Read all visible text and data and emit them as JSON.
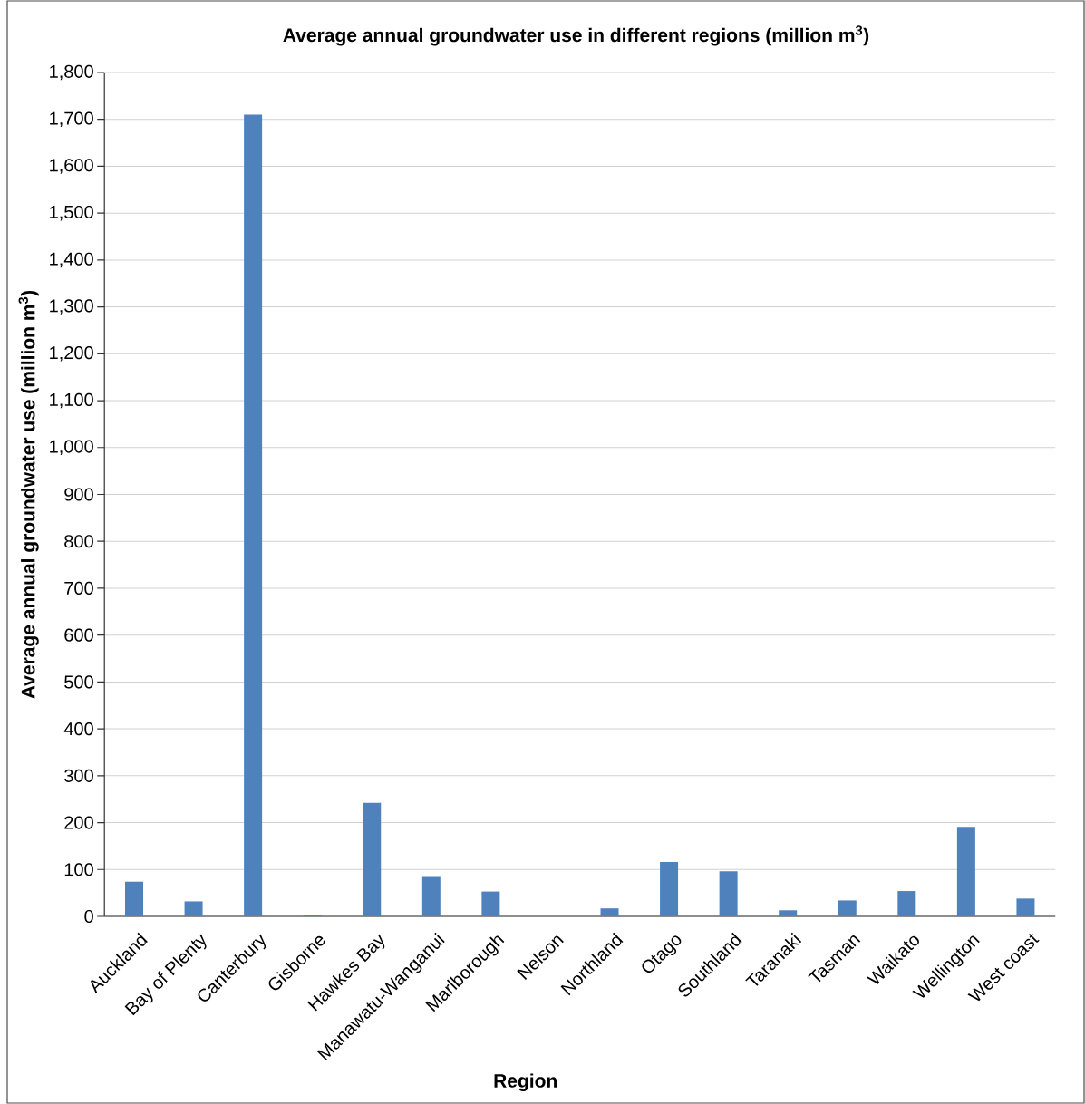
{
  "chart_data": {
    "type": "bar",
    "title": "Average annual groundwater use in different regions (million m$^{3}$)",
    "xlabel": "Region",
    "ylabel": "Average annual groundwater use (million m$^{3}$)",
    "categories": [
      "Auckland",
      "Bay of Plenty",
      "Canterbury",
      "Gisborne",
      "Hawkes Bay",
      "Manawatu-Wanganui",
      "Marlborough",
      "Nelson",
      "Northland",
      "Otago",
      "Southland",
      "Taranaki",
      "Tasman",
      "Waikato",
      "Wellington",
      "West coast"
    ],
    "values": [
      74,
      32,
      1710,
      3,
      242,
      84,
      53,
      0,
      17,
      116,
      96,
      13,
      34,
      54,
      191,
      38
    ],
    "color": "#4f81bd",
    "ylim": [
      0,
      1800
    ],
    "yticks": [
      0,
      100,
      200,
      300,
      400,
      500,
      600,
      700,
      800,
      900,
      {
        "value": 1000,
        "label": "1,000"
      },
      {
        "value": 1100,
        "label": "1,100"
      },
      {
        "value": 1200,
        "label": "1,200"
      },
      {
        "value": 1300,
        "label": "1,300"
      },
      {
        "value": 1400,
        "label": "1,400"
      },
      {
        "value": 1500,
        "label": "1,500"
      },
      {
        "value": 1600,
        "label": "1,600"
      },
      {
        "value": 1700,
        "label": "1,700"
      },
      {
        "value": 1800,
        "label": "1,800"
      }
    ],
    "grid": "y"
  }
}
